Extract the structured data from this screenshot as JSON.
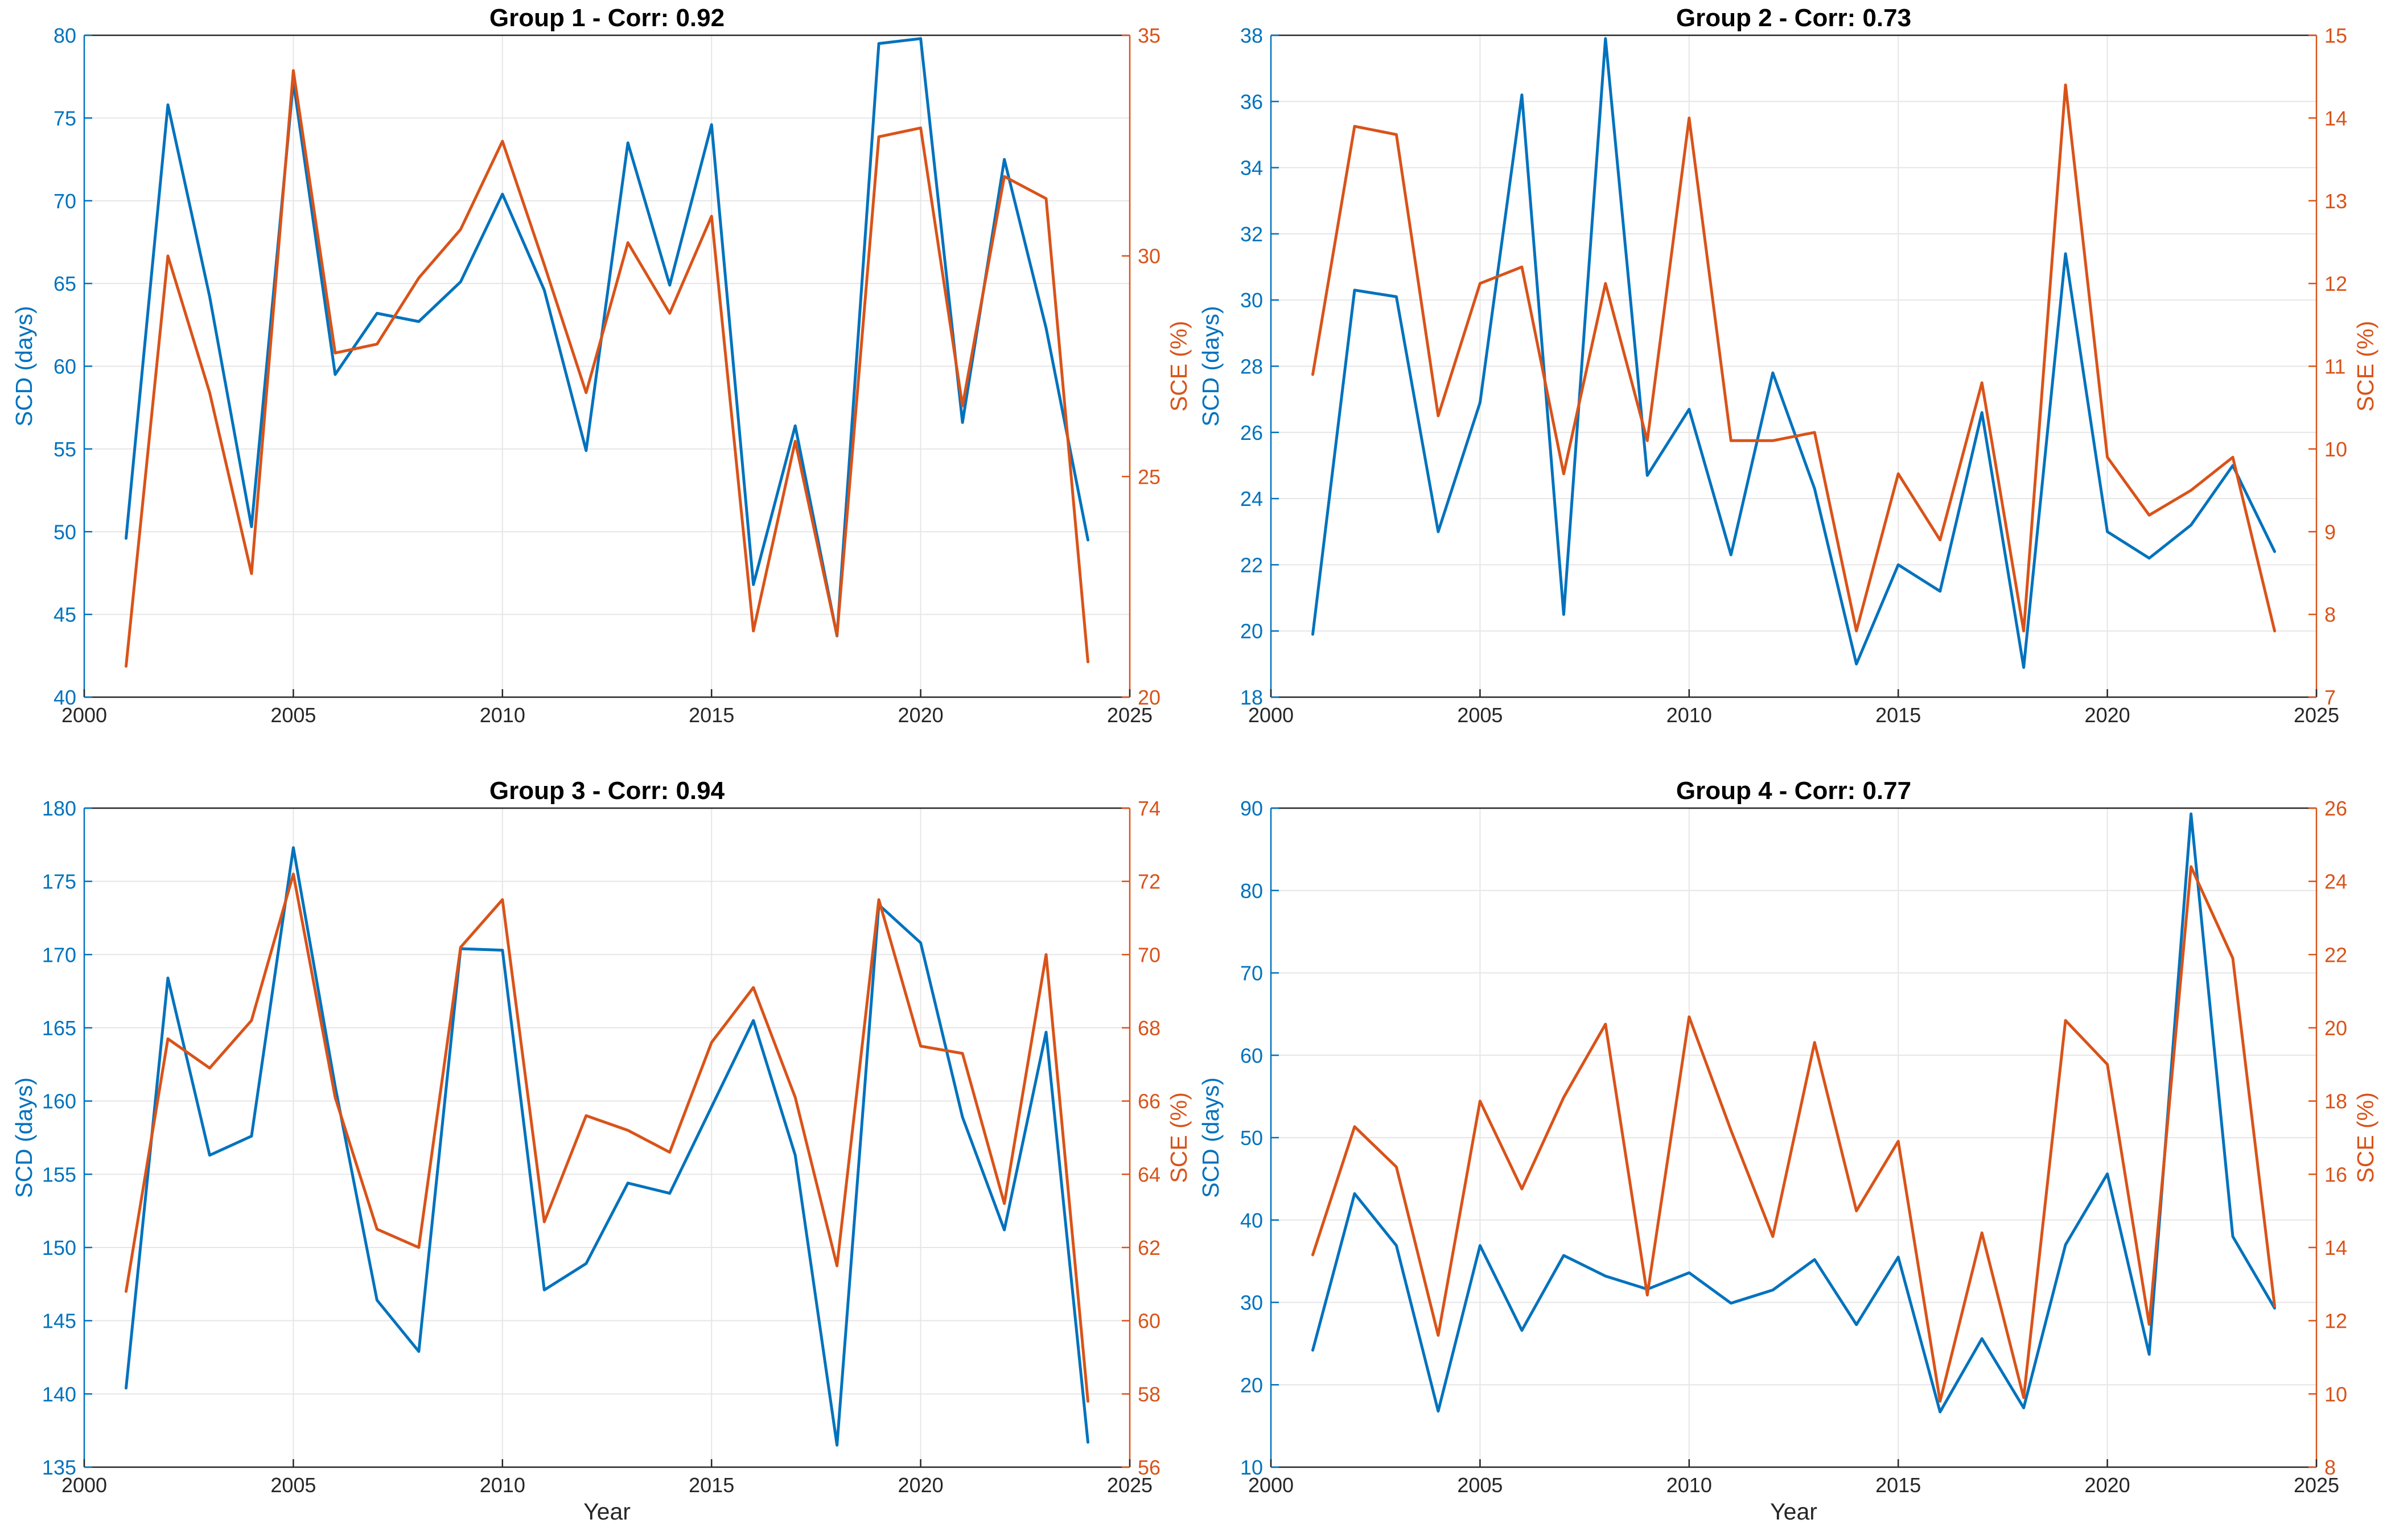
{
  "colors": {
    "scd": "#0072BD",
    "sce": "#D95319",
    "grid": "#e6e6e6",
    "axis": "#262626"
  },
  "chart_data": [
    {
      "type": "line",
      "title": "Group 1 - Corr: 0.92",
      "xlabel": "",
      "ylabel_left": "SCD (days)",
      "ylabel_right": "SCE (%)",
      "xlim": [
        2000,
        2025
      ],
      "xticks": [
        "2000",
        "2005",
        "2010",
        "2015",
        "2020",
        "2025"
      ],
      "ylim_left": [
        40,
        80
      ],
      "yticks_left": [
        "40",
        "45",
        "50",
        "55",
        "60",
        "65",
        "70",
        "75",
        "80"
      ],
      "ylim_right": [
        20,
        35
      ],
      "yticks_right": [
        "20",
        "25",
        "30",
        "35"
      ],
      "grid": true,
      "x": [
        2001,
        2002,
        2003,
        2004,
        2005,
        2006,
        2007,
        2008,
        2009,
        2010,
        2011,
        2012,
        2013,
        2014,
        2015,
        2016,
        2017,
        2018,
        2019,
        2020,
        2021,
        2022,
        2023,
        2024
      ],
      "series": [
        {
          "name": "SCD",
          "axis": "left",
          "values": [
            49.6,
            75.8,
            64.2,
            50.3,
            77.2,
            59.5,
            63.2,
            62.7,
            65.1,
            70.4,
            64.6,
            54.9,
            73.5,
            64.9,
            74.6,
            46.8,
            56.4,
            43.7,
            79.5,
            79.8,
            56.6,
            72.5,
            62.3,
            49.5
          ]
        },
        {
          "name": "SCE",
          "axis": "right",
          "values": [
            20.7,
            30.0,
            26.9,
            22.8,
            34.2,
            27.8,
            28.0,
            29.5,
            30.6,
            32.6,
            29.8,
            26.9,
            30.3,
            28.7,
            30.9,
            21.5,
            25.8,
            21.4,
            32.7,
            32.9,
            26.6,
            31.8,
            31.3,
            20.8
          ]
        }
      ]
    },
    {
      "type": "line",
      "title": "Group 2 - Corr: 0.73",
      "xlabel": "",
      "ylabel_left": "SCD (days)",
      "ylabel_right": "SCE (%)",
      "xlim": [
        2000,
        2025
      ],
      "xticks": [
        "2000",
        "2005",
        "2010",
        "2015",
        "2020",
        "2025"
      ],
      "ylim_left": [
        18,
        38
      ],
      "yticks_left": [
        "18",
        "20",
        "22",
        "24",
        "26",
        "28",
        "30",
        "32",
        "34",
        "36",
        "38"
      ],
      "ylim_right": [
        7,
        15
      ],
      "yticks_right": [
        "7",
        "8",
        "9",
        "10",
        "11",
        "12",
        "13",
        "14",
        "15"
      ],
      "grid": true,
      "x": [
        2001,
        2002,
        2003,
        2004,
        2005,
        2006,
        2007,
        2008,
        2009,
        2010,
        2011,
        2012,
        2013,
        2014,
        2015,
        2016,
        2017,
        2018,
        2019,
        2020,
        2021,
        2022,
        2023,
        2024
      ],
      "series": [
        {
          "name": "SCD",
          "axis": "left",
          "values": [
            19.9,
            30.3,
            30.1,
            23.0,
            26.9,
            36.2,
            20.5,
            37.9,
            24.7,
            26.7,
            22.3,
            27.8,
            24.3,
            19.0,
            22.0,
            21.2,
            26.6,
            18.9,
            31.4,
            23.0,
            22.2,
            23.2,
            25.0,
            22.4
          ]
        },
        {
          "name": "SCE",
          "axis": "right",
          "values": [
            10.9,
            13.9,
            13.8,
            10.4,
            12.0,
            12.2,
            9.7,
            12.0,
            10.1,
            14.0,
            10.1,
            10.1,
            10.2,
            7.8,
            9.7,
            8.9,
            10.8,
            7.8,
            14.4,
            9.9,
            9.2,
            9.5,
            9.9,
            7.8
          ]
        }
      ]
    },
    {
      "type": "line",
      "title": "Group 3 - Corr: 0.94",
      "xlabel": "Year",
      "ylabel_left": "SCD (days)",
      "ylabel_right": "SCE (%)",
      "xlim": [
        2000,
        2025
      ],
      "xticks": [
        "2000",
        "2005",
        "2010",
        "2015",
        "2020",
        "2025"
      ],
      "ylim_left": [
        135,
        180
      ],
      "yticks_left": [
        "135",
        "140",
        "145",
        "150",
        "155",
        "160",
        "165",
        "170",
        "175",
        "180"
      ],
      "ylim_right": [
        56,
        74
      ],
      "yticks_right": [
        "56",
        "58",
        "60",
        "62",
        "64",
        "66",
        "68",
        "70",
        "72",
        "74"
      ],
      "grid": true,
      "x": [
        2001,
        2002,
        2003,
        2004,
        2005,
        2006,
        2007,
        2008,
        2009,
        2010,
        2011,
        2012,
        2013,
        2014,
        2015,
        2016,
        2017,
        2018,
        2019,
        2020,
        2021,
        2022,
        2023,
        2024
      ],
      "series": [
        {
          "name": "SCD",
          "axis": "left",
          "values": [
            140.4,
            168.4,
            156.3,
            157.6,
            177.3,
            161.0,
            146.4,
            142.9,
            170.4,
            170.3,
            147.1,
            148.9,
            154.4,
            153.7,
            159.6,
            165.5,
            156.3,
            136.5,
            173.4,
            170.8,
            158.9,
            151.2,
            164.7,
            136.7
          ]
        },
        {
          "name": "SCE",
          "axis": "right",
          "values": [
            60.8,
            67.7,
            66.9,
            68.2,
            72.2,
            66.1,
            62.5,
            62.0,
            70.2,
            71.5,
            62.7,
            65.6,
            65.2,
            64.6,
            67.6,
            69.1,
            66.1,
            61.5,
            71.5,
            67.5,
            67.3,
            63.2,
            70.0,
            57.8
          ]
        }
      ]
    },
    {
      "type": "line",
      "title": "Group 4 - Corr: 0.77",
      "xlabel": "Year",
      "ylabel_left": "SCD (days)",
      "ylabel_right": "SCE (%)",
      "xlim": [
        2000,
        2025
      ],
      "xticks": [
        "2000",
        "2005",
        "2010",
        "2015",
        "2020",
        "2025"
      ],
      "ylim_left": [
        10,
        90
      ],
      "yticks_left": [
        "10",
        "20",
        "30",
        "40",
        "50",
        "60",
        "70",
        "80",
        "90"
      ],
      "ylim_right": [
        8,
        26
      ],
      "yticks_right": [
        "8",
        "10",
        "12",
        "14",
        "16",
        "18",
        "20",
        "22",
        "24",
        "26"
      ],
      "grid": true,
      "x": [
        2001,
        2002,
        2003,
        2004,
        2005,
        2006,
        2007,
        2008,
        2009,
        2010,
        2011,
        2012,
        2013,
        2014,
        2015,
        2016,
        2017,
        2018,
        2019,
        2020,
        2021,
        2022,
        2023,
        2024
      ],
      "series": [
        {
          "name": "SCD",
          "axis": "left",
          "values": [
            24.2,
            43.2,
            36.9,
            16.8,
            36.9,
            26.6,
            35.7,
            33.2,
            31.6,
            33.6,
            29.9,
            31.5,
            35.2,
            27.3,
            35.5,
            16.7,
            25.6,
            17.2,
            37.0,
            45.6,
            23.7,
            89.3,
            38.0,
            29.3
          ]
        },
        {
          "name": "SCE",
          "axis": "right",
          "values": [
            13.8,
            17.3,
            16.2,
            11.6,
            18.0,
            15.6,
            18.1,
            20.1,
            12.7,
            20.3,
            17.2,
            14.3,
            19.6,
            15.0,
            16.9,
            9.8,
            14.4,
            9.9,
            20.2,
            19.0,
            11.9,
            24.4,
            21.9,
            12.4
          ]
        }
      ]
    }
  ]
}
